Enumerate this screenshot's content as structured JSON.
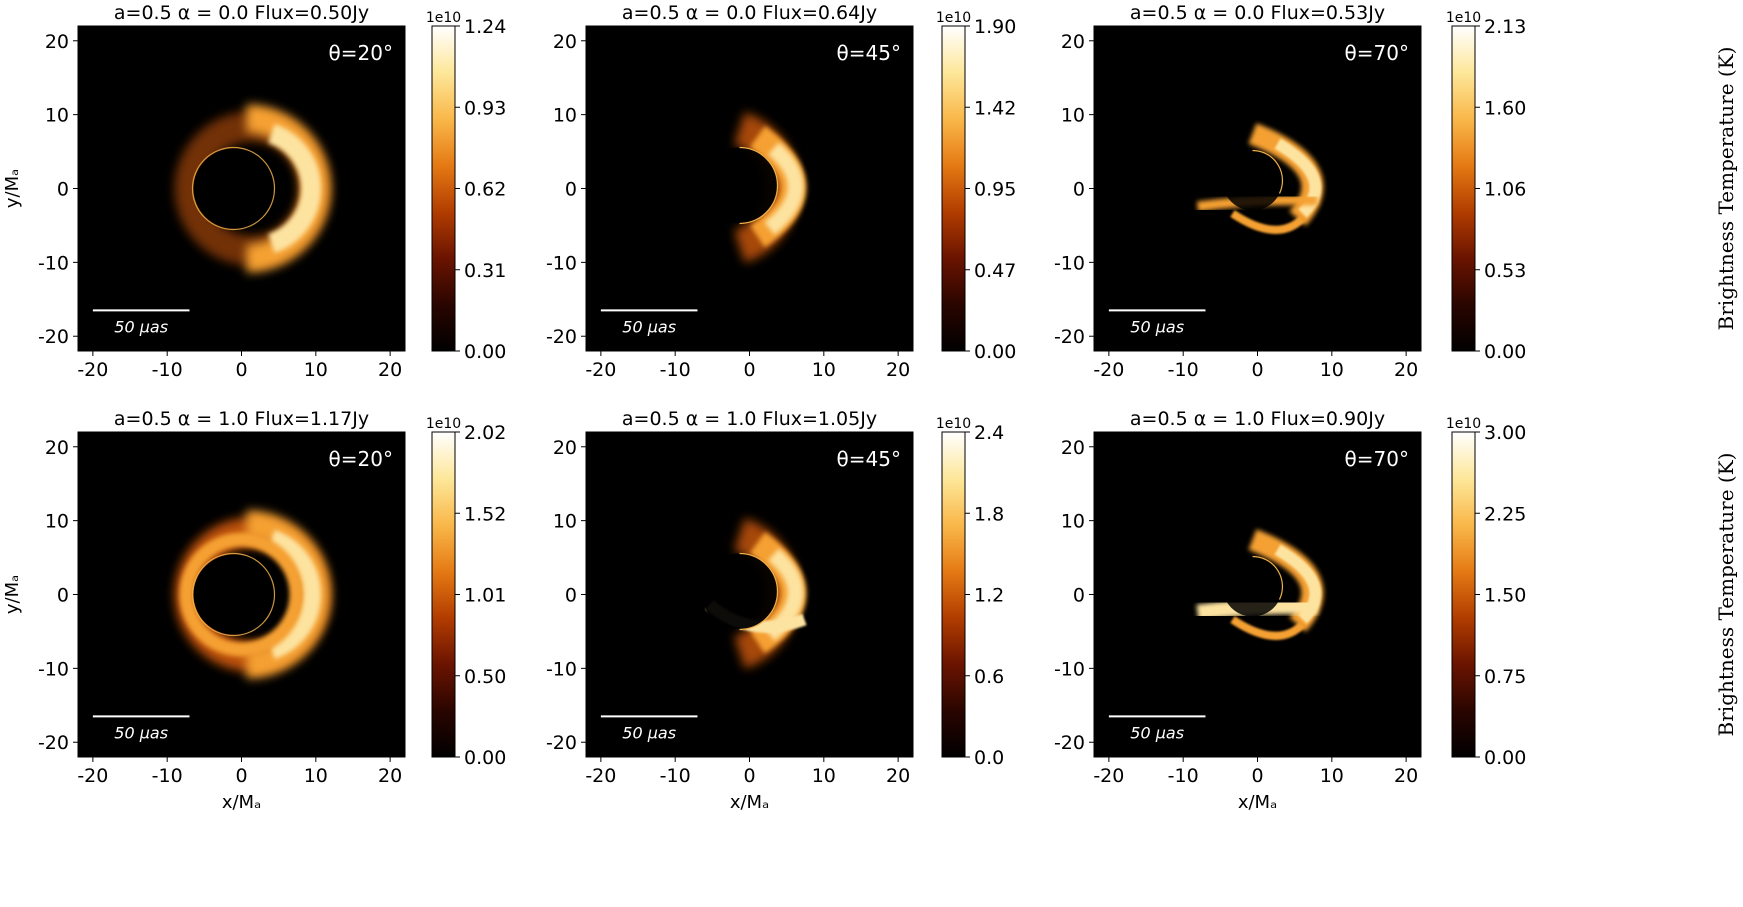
{
  "figure": {
    "colorbar_label": "Brightness Temperature (K)",
    "colorbar_multiplier": "1e10",
    "scalebar_label": "50 μas",
    "x_axis_label": "x/Mₐ",
    "y_axis_label": "y/Mₐ",
    "colormap": [
      "#000000",
      "#2a0500",
      "#6b1400",
      "#b23d00",
      "#e57a14",
      "#f9b84a",
      "#fde79a",
      "#ffffff"
    ]
  },
  "chart_data": [
    {
      "type": "heatmap",
      "title": "a=0.5  α = 0.0    Flux=0.50Jy",
      "annotation": "θ=20°",
      "xlim": [
        -22,
        22
      ],
      "ylim": [
        -22,
        22
      ],
      "xticks": [
        -20,
        -10,
        0,
        10,
        20
      ],
      "yticks": [
        -20,
        -10,
        0,
        10,
        20
      ],
      "colorbar_ticks": [
        "0.00",
        "0.31",
        "0.62",
        "0.93",
        "1.24"
      ],
      "xlabel": "",
      "ylabel": "y/Mₐ"
    },
    {
      "type": "heatmap",
      "title": "a=0.5  α = 0.0    Flux=0.64Jy",
      "annotation": "θ=45°",
      "xlim": [
        -22,
        22
      ],
      "ylim": [
        -22,
        22
      ],
      "xticks": [
        -20,
        -10,
        0,
        10,
        20
      ],
      "yticks": [
        -20,
        -10,
        0,
        10,
        20
      ],
      "colorbar_ticks": [
        "0.00",
        "0.47",
        "0.95",
        "1.42",
        "1.90"
      ],
      "xlabel": "",
      "ylabel": ""
    },
    {
      "type": "heatmap",
      "title": "a=0.5  α = 0.0    Flux=0.53Jy",
      "annotation": "θ=70°",
      "xlim": [
        -22,
        22
      ],
      "ylim": [
        -22,
        22
      ],
      "xticks": [
        -20,
        -10,
        0,
        10,
        20
      ],
      "yticks": [
        -20,
        -10,
        0,
        10,
        20
      ],
      "colorbar_ticks": [
        "0.00",
        "0.53",
        "1.06",
        "1.60",
        "2.13"
      ],
      "xlabel": "",
      "ylabel": ""
    },
    {
      "type": "heatmap",
      "title": "a=0.5  α = 1.0    Flux=1.17Jy",
      "annotation": "θ=20°",
      "xlim": [
        -22,
        22
      ],
      "ylim": [
        -22,
        22
      ],
      "xticks": [
        -20,
        -10,
        0,
        10,
        20
      ],
      "yticks": [
        -20,
        -10,
        0,
        10,
        20
      ],
      "colorbar_ticks": [
        "0.00",
        "0.50",
        "1.01",
        "1.52",
        "2.02"
      ],
      "xlabel": "x/Mₐ",
      "ylabel": "y/Mₐ"
    },
    {
      "type": "heatmap",
      "title": "a=0.5  α = 1.0    Flux=1.05Jy",
      "annotation": "θ=45°",
      "xlim": [
        -22,
        22
      ],
      "ylim": [
        -22,
        22
      ],
      "xticks": [
        -20,
        -10,
        0,
        10,
        20
      ],
      "yticks": [
        -20,
        -10,
        0,
        10,
        20
      ],
      "colorbar_ticks": [
        "0.0",
        "0.6",
        "1.2",
        "1.8",
        "2.4"
      ],
      "xlabel": "x/Mₐ",
      "ylabel": ""
    },
    {
      "type": "heatmap",
      "title": "a=0.5  α = 1.0    Flux=0.90Jy",
      "annotation": "θ=70°",
      "xlim": [
        -22,
        22
      ],
      "ylim": [
        -22,
        22
      ],
      "xticks": [
        -20,
        -10,
        0,
        10,
        20
      ],
      "yticks": [
        -20,
        -10,
        0,
        10,
        20
      ],
      "colorbar_ticks": [
        "0.00",
        "0.75",
        "1.50",
        "2.25",
        "3.00"
      ],
      "xlabel": "x/Mₐ",
      "ylabel": ""
    }
  ]
}
